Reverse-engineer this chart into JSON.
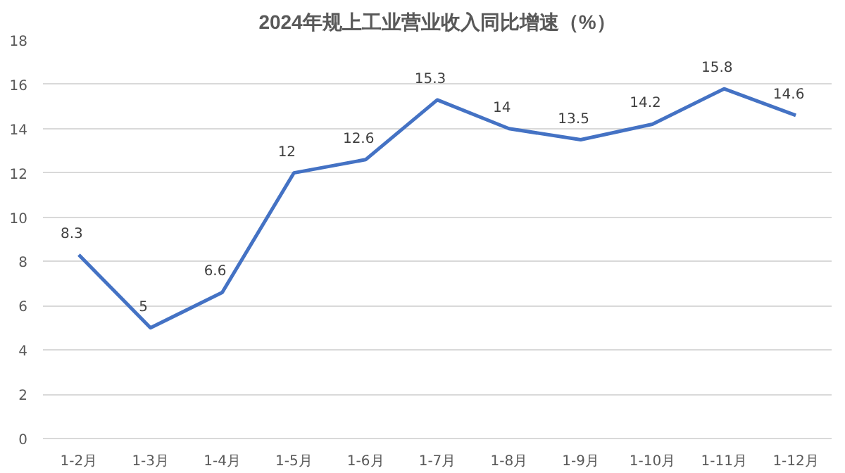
{
  "chart_data": {
    "type": "line",
    "title": "2024年规上工业营业收入同比增速（%）",
    "categories": [
      "1-2月",
      "1-3月",
      "1-4月",
      "1-5月",
      "1-6月",
      "1-7月",
      "1-8月",
      "1-9月",
      "1-10月",
      "1-11月",
      "1-12月"
    ],
    "series": [
      {
        "color": "#4472c4",
        "values": [
          8.3,
          5,
          6.6,
          12,
          12.6,
          15.3,
          14,
          13.5,
          14.2,
          15.8,
          14.6
        ]
      }
    ],
    "ylim": [
      0,
      18
    ],
    "yticks": [
      0,
      2,
      4,
      6,
      8,
      10,
      12,
      14,
      16,
      18
    ],
    "grid": "y",
    "data_labels": true
  }
}
